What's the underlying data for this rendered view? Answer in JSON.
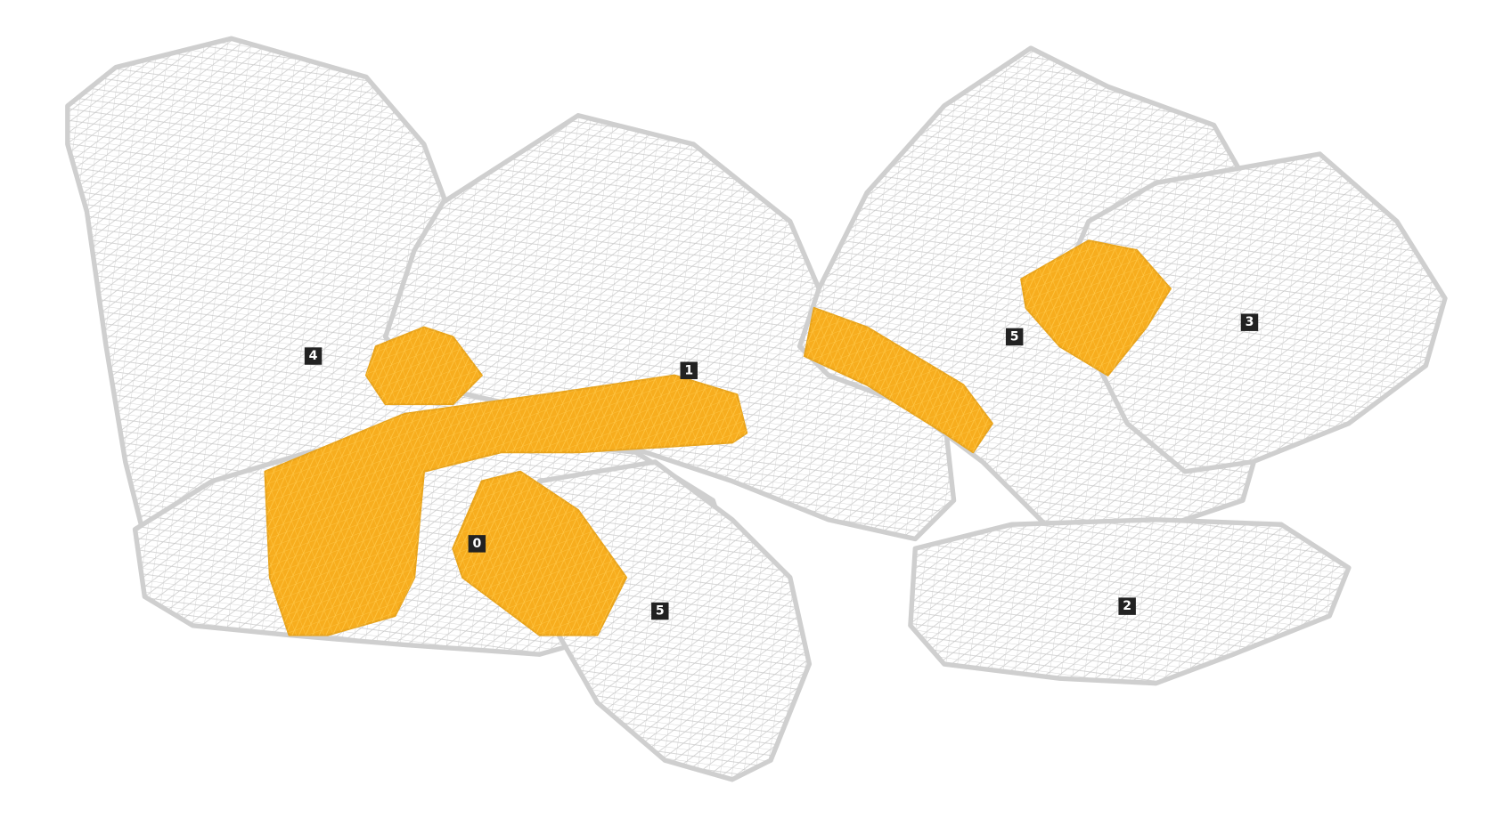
{
  "rock_labels": [
    "4",
    "1",
    "0",
    "5",
    "5",
    "2",
    "3"
  ]
}
